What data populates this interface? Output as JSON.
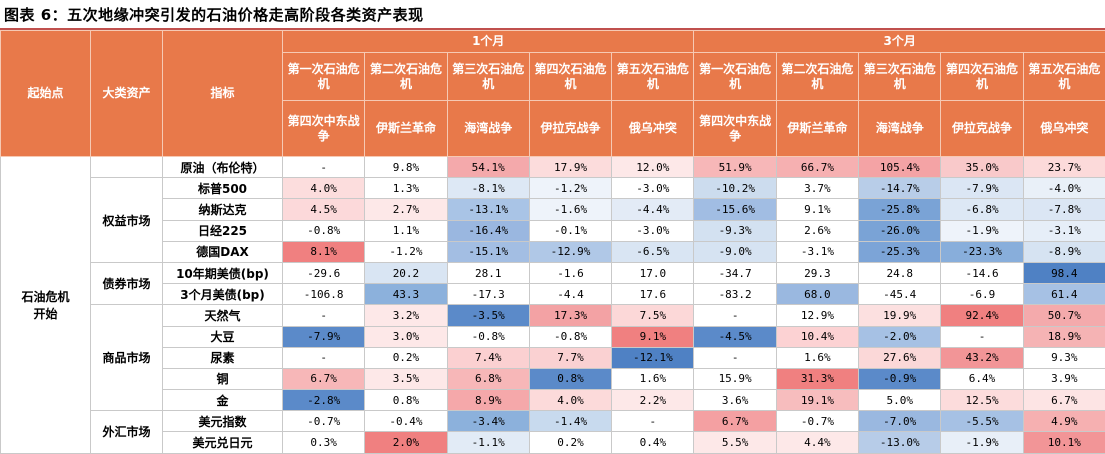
{
  "title": "图表 6：五次地缘冲突引发的石油价格走高阶段各类资产表现",
  "header": {
    "start_point": "起始点",
    "asset_class": "大类资产",
    "indicator": "指标",
    "period_1m": "1个月",
    "period_3m": "3个月",
    "crises": [
      {
        "name": "第一次石油危机",
        "event": "第四次中东战争"
      },
      {
        "name": "第二次石油危机",
        "event": "伊斯兰革命"
      },
      {
        "name": "第三次石油危机",
        "event": "海湾战争"
      },
      {
        "name": "第四次石油危机",
        "event": "伊拉克战争"
      },
      {
        "name": "第五次石油危机",
        "event": "俄乌冲突"
      }
    ]
  },
  "start_label": "石油危机开始",
  "groups": [
    {
      "label": "",
      "rows": [
        {
          "indicator": "原油（布伦特）",
          "values": [
            "-",
            "9.8%",
            "54.1%",
            "17.9%",
            "12.0%",
            "51.9%",
            "66.7%",
            "105.4%",
            "35.0%",
            "23.7%"
          ],
          "colors": [
            "#ffffff",
            "#ffffff",
            "#f4a9ab",
            "#fcdcdc",
            "#fde8e8",
            "#f7b7b8",
            "#f6b0b1",
            "#f4a3a5",
            "#f9c9ca",
            "#fcdada"
          ]
        }
      ]
    },
    {
      "label": "权益市场",
      "rows": [
        {
          "indicator": "标普500",
          "values": [
            "4.0%",
            "1.3%",
            "-8.1%",
            "-1.2%",
            "-3.0%",
            "-10.2%",
            "3.7%",
            "-14.7%",
            "-7.9%",
            "-4.0%"
          ],
          "colors": [
            "#fcdddd",
            "#ffffff",
            "#dde8f5",
            "#eef3fa",
            "#ffffff",
            "#ccdcee",
            "#ffffff",
            "#b8cde8",
            "#dbe6f4",
            "#e9f0f8"
          ]
        },
        {
          "indicator": "纳斯达克",
          "values": [
            "4.5%",
            "2.7%",
            "-13.1%",
            "-1.6%",
            "-4.4%",
            "-15.6%",
            "9.1%",
            "-25.8%",
            "-6.8%",
            "-7.8%"
          ],
          "colors": [
            "#fcd9da",
            "#fde8e8",
            "#a9c4e6",
            "#eef3fa",
            "#e3ebf6",
            "#a1bde3",
            "#ffffff",
            "#7aa3d6",
            "#dde8f5",
            "#dbe6f4"
          ]
        },
        {
          "indicator": "日经225",
          "values": [
            "-0.8%",
            "1.1%",
            "-16.4%",
            "-0.1%",
            "-3.0%",
            "-9.3%",
            "2.6%",
            "-26.0%",
            "-1.9%",
            "-3.1%"
          ],
          "colors": [
            "#ffffff",
            "#ffffff",
            "#9ab7e0",
            "#ffffff",
            "#ffffff",
            "#d3e1f1",
            "#ffffff",
            "#7aa3d6",
            "#eef3fa",
            "#e6eef8"
          ]
        },
        {
          "indicator": "德国DAX",
          "values": [
            "8.1%",
            "-1.2%",
            "-15.1%",
            "-12.9%",
            "-6.5%",
            "-9.0%",
            "-3.1%",
            "-25.3%",
            "-23.3%",
            "-8.9%"
          ],
          "colors": [
            "#f08080",
            "#ffffff",
            "#a3bee3",
            "#b0c8e7",
            "#d9e5f3",
            "#d6e3f2",
            "#ffffff",
            "#7ca4d7",
            "#88aedb",
            "#d6e3f2"
          ]
        }
      ]
    },
    {
      "label": "债券市场",
      "rows": [
        {
          "indicator": "10年期美债(bp)",
          "values": [
            "-29.6",
            "20.2",
            "28.1",
            "-1.6",
            "17.0",
            "-34.7",
            "29.3",
            "24.8",
            "-14.6",
            "98.4"
          ],
          "colors": [
            "#ffffff",
            "#d9e5f3",
            "#ffffff",
            "#ffffff",
            "#ffffff",
            "#ffffff",
            "#ffffff",
            "#ffffff",
            "#ffffff",
            "#4f81c4"
          ]
        },
        {
          "indicator": "3个月美债(bp)",
          "values": [
            "-106.8",
            "43.3",
            "-17.3",
            "-4.4",
            "17.6",
            "-83.2",
            "68.0",
            "-45.4",
            "-6.9",
            "61.4"
          ],
          "colors": [
            "#ffffff",
            "#8cb1dc",
            "#ffffff",
            "#ffffff",
            "#ffffff",
            "#ffffff",
            "#9ab8e0",
            "#ffffff",
            "#ffffff",
            "#a6c1e4"
          ]
        }
      ]
    },
    {
      "label": "商品市场",
      "rows": [
        {
          "indicator": "天然气",
          "values": [
            "-",
            "3.2%",
            "-3.5%",
            "17.3%",
            "7.5%",
            "-",
            "12.9%",
            "19.9%",
            "92.4%",
            "50.7%"
          ],
          "colors": [
            "#ffffff",
            "#fde8e8",
            "#5b8ac9",
            "#f3a2a4",
            "#fcd8d8",
            "#ffffff",
            "#ffffff",
            "#fce0e0",
            "#f08080",
            "#f4aaac"
          ]
        },
        {
          "indicator": "大豆",
          "values": [
            "-7.9%",
            "3.0%",
            "-0.8%",
            "-0.8%",
            "9.1%",
            "-4.5%",
            "10.4%",
            "-2.0%",
            "-",
            "18.9%"
          ],
          "colors": [
            "#5b8ac9",
            "#fde8e8",
            "#ffffff",
            "#ffffff",
            "#f08080",
            "#5b8ac9",
            "#fcd2d3",
            "#a6c1e4",
            "#ffffff",
            "#f5b3b4"
          ]
        },
        {
          "indicator": "尿素",
          "values": [
            "-",
            "0.2%",
            "7.4%",
            "7.7%",
            "-12.1%",
            "-",
            "1.6%",
            "27.6%",
            "43.2%",
            "9.3%"
          ],
          "colors": [
            "#ffffff",
            "#ffffff",
            "#fbd0d1",
            "#fad1d2",
            "#4f81c4",
            "#ffffff",
            "#ffffff",
            "#fbd8d8",
            "#f29597",
            "#ffffff"
          ]
        },
        {
          "indicator": "铜",
          "values": [
            "6.7%",
            "3.5%",
            "6.8%",
            "0.8%",
            "1.6%",
            "15.9%",
            "31.3%",
            "-0.9%",
            "6.4%",
            "3.9%"
          ],
          "colors": [
            "#f7b7b8",
            "#fde8e8",
            "#f7b7b8",
            "#5b8ac9",
            "#ffffff",
            "#ffffff",
            "#f08080",
            "#5b8ac9",
            "#ffffff",
            "#ffffff"
          ]
        },
        {
          "indicator": "金",
          "values": [
            "-2.8%",
            "0.8%",
            "8.9%",
            "4.0%",
            "2.2%",
            "3.6%",
            "19.1%",
            "5.0%",
            "12.5%",
            "6.7%"
          ],
          "colors": [
            "#5b8ac9",
            "#ffffff",
            "#f5a8aa",
            "#fcdada",
            "#fde8e8",
            "#ffffff",
            "#f7bdbe",
            "#ffffff",
            "#fcdcdc",
            "#fde4e4"
          ]
        }
      ]
    },
    {
      "label": "外汇市场",
      "rows": [
        {
          "indicator": "美元指数",
          "values": [
            "-0.7%",
            "-0.4%",
            "-3.4%",
            "-1.4%",
            "-",
            "6.7%",
            "-0.7%",
            "-7.0%",
            "-5.5%",
            "4.9%"
          ],
          "colors": [
            "#ffffff",
            "#ffffff",
            "#8cb1dc",
            "#c8daee",
            "#ffffff",
            "#f4a0a2",
            "#ffffff",
            "#9ab8e0",
            "#a6c1e4",
            "#f6b0b1"
          ]
        },
        {
          "indicator": "美元兑日元",
          "values": [
            "0.3%",
            "2.0%",
            "-1.1%",
            "0.2%",
            "0.4%",
            "5.5%",
            "4.4%",
            "-13.0%",
            "-1.9%",
            "10.1%"
          ],
          "colors": [
            "#ffffff",
            "#f08080",
            "#e2ebf6",
            "#ffffff",
            "#ffffff",
            "#fde8e8",
            "#fde8e8",
            "#b7cce8",
            "#e8eff8",
            "#f29597"
          ]
        }
      ]
    }
  ]
}
